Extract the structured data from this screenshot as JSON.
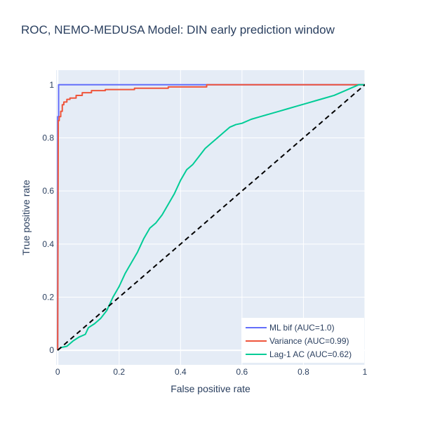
{
  "chart_data": {
    "type": "line",
    "title": "ROC, NEMO-MEDUSA Model: DIN early prediction window",
    "xlabel": "False positive rate",
    "ylabel": "True positive rate",
    "xlim": [
      -0.005,
      1.0
    ],
    "ylim": [
      -0.055,
      1.055
    ],
    "xticks": [
      0,
      0.2,
      0.4,
      0.6,
      0.8,
      1
    ],
    "xtick_labels": [
      "0",
      "0.2",
      "0.4",
      "0.6",
      "0.8",
      "1"
    ],
    "yticks": [
      0,
      0.2,
      0.4,
      0.6,
      0.8,
      1
    ],
    "ytick_labels": [
      "0",
      "0.2",
      "0.4",
      "0.6",
      "0.8",
      "1"
    ],
    "grid": true,
    "legend_position": "bottom-right",
    "series": [
      {
        "name": "ML bif (AUC=1.0)",
        "color": "#636efa",
        "x": [
          0,
          0,
          0.003,
          0.003,
          0.49,
          0.49,
          1.0
        ],
        "y": [
          0,
          0.88,
          0.88,
          1.0,
          1.0,
          1.0,
          1.0
        ]
      },
      {
        "name": "Variance (AUC=0.99)",
        "color": "#ef553b",
        "x": [
          0,
          0.002,
          0.002,
          0.005,
          0.005,
          0.01,
          0.01,
          0.015,
          0.015,
          0.02,
          0.02,
          0.03,
          0.03,
          0.04,
          0.04,
          0.06,
          0.06,
          0.08,
          0.08,
          0.11,
          0.11,
          0.155,
          0.155,
          0.25,
          0.25,
          0.36,
          0.36,
          0.485,
          0.485,
          1.0
        ],
        "y": [
          0,
          0.85,
          0.865,
          0.865,
          0.88,
          0.88,
          0.9,
          0.9,
          0.925,
          0.925,
          0.935,
          0.935,
          0.945,
          0.945,
          0.95,
          0.95,
          0.96,
          0.96,
          0.97,
          0.97,
          0.978,
          0.978,
          0.982,
          0.982,
          0.987,
          0.987,
          0.992,
          0.992,
          1.0,
          1.0
        ]
      },
      {
        "name": "Lag-1 AC (AUC=0.62)",
        "color": "#00cc96",
        "x": [
          0,
          0.01,
          0.03,
          0.05,
          0.07,
          0.09,
          0.1,
          0.12,
          0.14,
          0.16,
          0.18,
          0.2,
          0.22,
          0.24,
          0.26,
          0.28,
          0.3,
          0.32,
          0.34,
          0.36,
          0.38,
          0.4,
          0.42,
          0.44,
          0.46,
          0.48,
          0.5,
          0.52,
          0.54,
          0.56,
          0.58,
          0.6,
          0.63,
          0.66,
          0.69,
          0.72,
          0.75,
          0.78,
          0.81,
          0.84,
          0.87,
          0.9,
          0.93,
          0.96,
          0.98,
          1.0
        ],
        "y": [
          0,
          0.01,
          0.015,
          0.035,
          0.05,
          0.06,
          0.085,
          0.1,
          0.12,
          0.15,
          0.2,
          0.24,
          0.29,
          0.33,
          0.37,
          0.42,
          0.46,
          0.48,
          0.51,
          0.55,
          0.59,
          0.64,
          0.68,
          0.7,
          0.73,
          0.76,
          0.78,
          0.8,
          0.82,
          0.84,
          0.85,
          0.855,
          0.87,
          0.88,
          0.89,
          0.9,
          0.91,
          0.92,
          0.93,
          0.94,
          0.95,
          0.96,
          0.975,
          0.99,
          1.0,
          1.0
        ]
      },
      {
        "name": "",
        "color": "#000000",
        "dash": "dashed",
        "x": [
          0,
          1
        ],
        "y": [
          0,
          1
        ]
      }
    ]
  }
}
